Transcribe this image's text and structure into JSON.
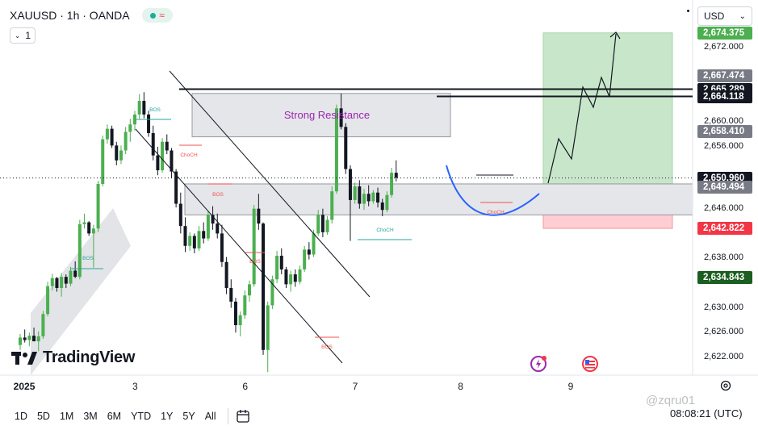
{
  "header": {
    "symbol": "XAUUSD · 1h · OANDA",
    "interval": "1",
    "currency": "USD"
  },
  "colors": {
    "up": "#4caf50",
    "down": "#131722",
    "bos": "#26a69a",
    "choch": "#ef5350",
    "resistance_label": "#9c27b0",
    "target_zone": "#c8e6c9",
    "stop_zone": "#ffcdd2",
    "curve": "#2962ff"
  },
  "price_tags": [
    {
      "label": "2,674.375",
      "price": 2674.375,
      "bg": "#4caf50",
      "fg": "#ffffff"
    },
    {
      "label": "2,667.474",
      "price": 2667.474,
      "bg": "#787b86",
      "fg": "#ffffff"
    },
    {
      "label": "2,665.289",
      "price": 2665.289,
      "bg": "#131722",
      "fg": "#ffffff"
    },
    {
      "label": "2,664.118",
      "price": 2664.118,
      "bg": "#131722",
      "fg": "#ffffff"
    },
    {
      "label": "2,658.410",
      "price": 2658.41,
      "bg": "#787b86",
      "fg": "#ffffff"
    },
    {
      "label": "2,650.960",
      "price": 2650.96,
      "bg": "#131722",
      "fg": "#ffffff"
    },
    {
      "label": "2,649.494",
      "price": 2649.494,
      "bg": "#787b86",
      "fg": "#ffffff"
    },
    {
      "label": "2,642.822",
      "price": 2642.822,
      "bg": "#f23645",
      "fg": "#ffffff"
    },
    {
      "label": "2,634.843",
      "price": 2634.843,
      "bg": "#1b5e20",
      "fg": "#ffffff"
    }
  ],
  "chart_data": {
    "type": "candlestick",
    "symbol": "XAUUSD",
    "interval": "1h",
    "ylim": [
      2618,
      2678
    ],
    "y_ticks": [
      {
        "label": "2,672.000",
        "value": 2672
      },
      {
        "label": "2,660.000",
        "value": 2660
      },
      {
        "label": "2,656.000",
        "value": 2656
      },
      {
        "label": "2,646.000",
        "value": 2646
      },
      {
        "label": "2,638.000",
        "value": 2638
      },
      {
        "label": "2,630.000",
        "value": 2630
      },
      {
        "label": "2,626.000",
        "value": 2626
      },
      {
        "label": "2,622.000",
        "value": 2622
      }
    ],
    "x_ticks": [
      {
        "label": "2025",
        "bar": 1
      },
      {
        "label": "3",
        "bar": 25
      },
      {
        "label": "6",
        "bar": 49
      },
      {
        "label": "7",
        "bar": 73
      },
      {
        "label": "8",
        "bar": 96
      },
      {
        "label": "9",
        "bar": 120
      }
    ],
    "x_range": [
      -3,
      147
    ],
    "candles": [
      [
        2624.0,
        2625.8,
        2623.2,
        2625.2
      ],
      [
        2625.2,
        2626.5,
        2624.4,
        2624.8
      ],
      [
        2624.8,
        2626.0,
        2623.8,
        2625.5
      ],
      [
        2625.5,
        2626.8,
        2624.6,
        2624.6
      ],
      [
        2624.6,
        2626.2,
        2623.0,
        2625.4
      ],
      [
        2625.4,
        2629.5,
        2625.0,
        2629.0
      ],
      [
        2629.0,
        2634.2,
        2628.6,
        2633.5
      ],
      [
        2633.5,
        2635.5,
        2632.8,
        2634.8
      ],
      [
        2634.8,
        2635.0,
        2632.6,
        2633.2
      ],
      [
        2633.2,
        2635.6,
        2631.8,
        2635.0
      ],
      [
        2635.0,
        2635.4,
        2633.2,
        2633.9
      ],
      [
        2633.9,
        2636.6,
        2633.5,
        2636.0
      ],
      [
        2636.0,
        2637.5,
        2634.8,
        2635.0
      ],
      [
        2635.0,
        2644.2,
        2634.6,
        2643.5
      ],
      [
        2643.5,
        2645.2,
        2642.8,
        2643.8
      ],
      [
        2643.8,
        2644.0,
        2641.6,
        2642.0
      ],
      [
        2642.0,
        2643.4,
        2636.5,
        2642.8
      ],
      [
        2642.8,
        2650.5,
        2642.2,
        2650.0
      ],
      [
        2650.0,
        2657.8,
        2649.6,
        2657.2
      ],
      [
        2657.2,
        2659.6,
        2656.5,
        2658.9
      ],
      [
        2658.9,
        2659.4,
        2655.8,
        2656.2
      ],
      [
        2656.2,
        2656.8,
        2653.0,
        2653.8
      ],
      [
        2653.8,
        2656.2,
        2653.2,
        2655.4
      ],
      [
        2655.4,
        2659.2,
        2654.8,
        2658.4
      ],
      [
        2658.4,
        2660.5,
        2656.8,
        2659.6
      ],
      [
        2659.6,
        2661.8,
        2658.6,
        2661.2
      ],
      [
        2661.2,
        2664.5,
        2660.5,
        2663.4
      ],
      [
        2663.4,
        2664.8,
        2660.6,
        2661.2
      ],
      [
        2661.2,
        2661.8,
        2657.6,
        2658.2
      ],
      [
        2658.2,
        2659.4,
        2653.8,
        2654.6
      ],
      [
        2654.6,
        2656.0,
        2651.4,
        2652.2
      ],
      [
        2652.2,
        2657.4,
        2651.8,
        2656.8
      ],
      [
        2656.8,
        2658.0,
        2654.8,
        2655.4
      ],
      [
        2655.4,
        2655.8,
        2651.0,
        2652.0
      ],
      [
        2652.0,
        2652.4,
        2646.2,
        2646.8
      ],
      [
        2646.8,
        2648.6,
        2642.0,
        2643.2
      ],
      [
        2643.2,
        2644.6,
        2639.0,
        2640.0
      ],
      [
        2640.0,
        2642.2,
        2639.2,
        2641.6
      ],
      [
        2641.6,
        2642.0,
        2638.8,
        2639.6
      ],
      [
        2639.6,
        2643.2,
        2639.2,
        2642.4
      ],
      [
        2642.4,
        2643.8,
        2640.4,
        2641.2
      ],
      [
        2641.2,
        2645.6,
        2640.8,
        2645.0
      ],
      [
        2645.0,
        2646.4,
        2642.6,
        2643.6
      ],
      [
        2643.6,
        2645.2,
        2641.2,
        2642.0
      ],
      [
        2642.0,
        2643.4,
        2636.6,
        2637.4
      ],
      [
        2637.4,
        2638.2,
        2632.2,
        2633.2
      ],
      [
        2633.2,
        2634.6,
        2630.0,
        2631.0
      ],
      [
        2631.0,
        2631.6,
        2626.0,
        2627.2
      ],
      [
        2627.2,
        2629.4,
        2625.4,
        2628.8
      ],
      [
        2628.8,
        2632.8,
        2628.2,
        2632.0
      ],
      [
        2632.0,
        2634.4,
        2631.0,
        2633.8
      ],
      [
        2633.8,
        2646.6,
        2633.4,
        2646.0
      ],
      [
        2646.0,
        2648.4,
        2642.6,
        2643.6
      ],
      [
        2643.6,
        2643.8,
        2622.4,
        2623.2
      ],
      [
        2623.2,
        2631.0,
        2619.6,
        2630.4
      ],
      [
        2630.4,
        2635.2,
        2629.8,
        2634.6
      ],
      [
        2634.6,
        2639.2,
        2634.0,
        2638.4
      ],
      [
        2638.4,
        2639.6,
        2635.4,
        2636.2
      ],
      [
        2636.2,
        2636.6,
        2633.2,
        2633.8
      ],
      [
        2633.8,
        2636.0,
        2632.6,
        2635.4
      ],
      [
        2635.4,
        2636.2,
        2633.4,
        2634.2
      ],
      [
        2634.2,
        2636.8,
        2633.8,
        2636.2
      ],
      [
        2636.2,
        2640.0,
        2635.8,
        2639.4
      ],
      [
        2639.4,
        2640.6,
        2637.8,
        2638.6
      ],
      [
        2638.6,
        2642.6,
        2638.2,
        2642.0
      ],
      [
        2642.0,
        2645.8,
        2641.6,
        2645.0
      ],
      [
        2645.0,
        2646.0,
        2641.4,
        2642.2
      ],
      [
        2642.2,
        2644.8,
        2641.8,
        2644.2
      ],
      [
        2644.2,
        2649.6,
        2643.6,
        2648.8
      ],
      [
        2648.8,
        2662.8,
        2648.4,
        2662.2
      ],
      [
        2662.2,
        2664.6,
        2658.8,
        2659.2
      ],
      [
        2659.2,
        2659.8,
        2651.6,
        2652.4
      ],
      [
        2652.4,
        2653.0,
        2640.8,
        2647.4
      ],
      [
        2647.4,
        2650.2,
        2646.8,
        2649.6
      ],
      [
        2649.6,
        2650.6,
        2646.0,
        2646.8
      ],
      [
        2646.8,
        2649.2,
        2645.8,
        2648.4
      ],
      [
        2648.4,
        2649.8,
        2646.4,
        2647.2
      ],
      [
        2647.2,
        2649.0,
        2646.8,
        2648.6
      ],
      [
        2648.6,
        2649.4,
        2646.2,
        2647.0
      ],
      [
        2647.0,
        2647.6,
        2644.8,
        2645.8
      ],
      [
        2645.8,
        2648.8,
        2645.4,
        2648.2
      ],
      [
        2648.2,
        2652.6,
        2647.8,
        2651.8
      ],
      [
        2651.8,
        2653.8,
        2650.4,
        2651.0
      ]
    ]
  },
  "annotations": {
    "strong_resistance": "Strong Resistance",
    "bos": "BOS",
    "choch": "ChoCH"
  },
  "footer": {
    "ranges": [
      "1D",
      "5D",
      "1M",
      "3M",
      "6M",
      "YTD",
      "1Y",
      "5Y",
      "All"
    ],
    "clock": "08:08:21 (UTC)",
    "logo": "TradingView",
    "watermark": "@zqru01"
  }
}
